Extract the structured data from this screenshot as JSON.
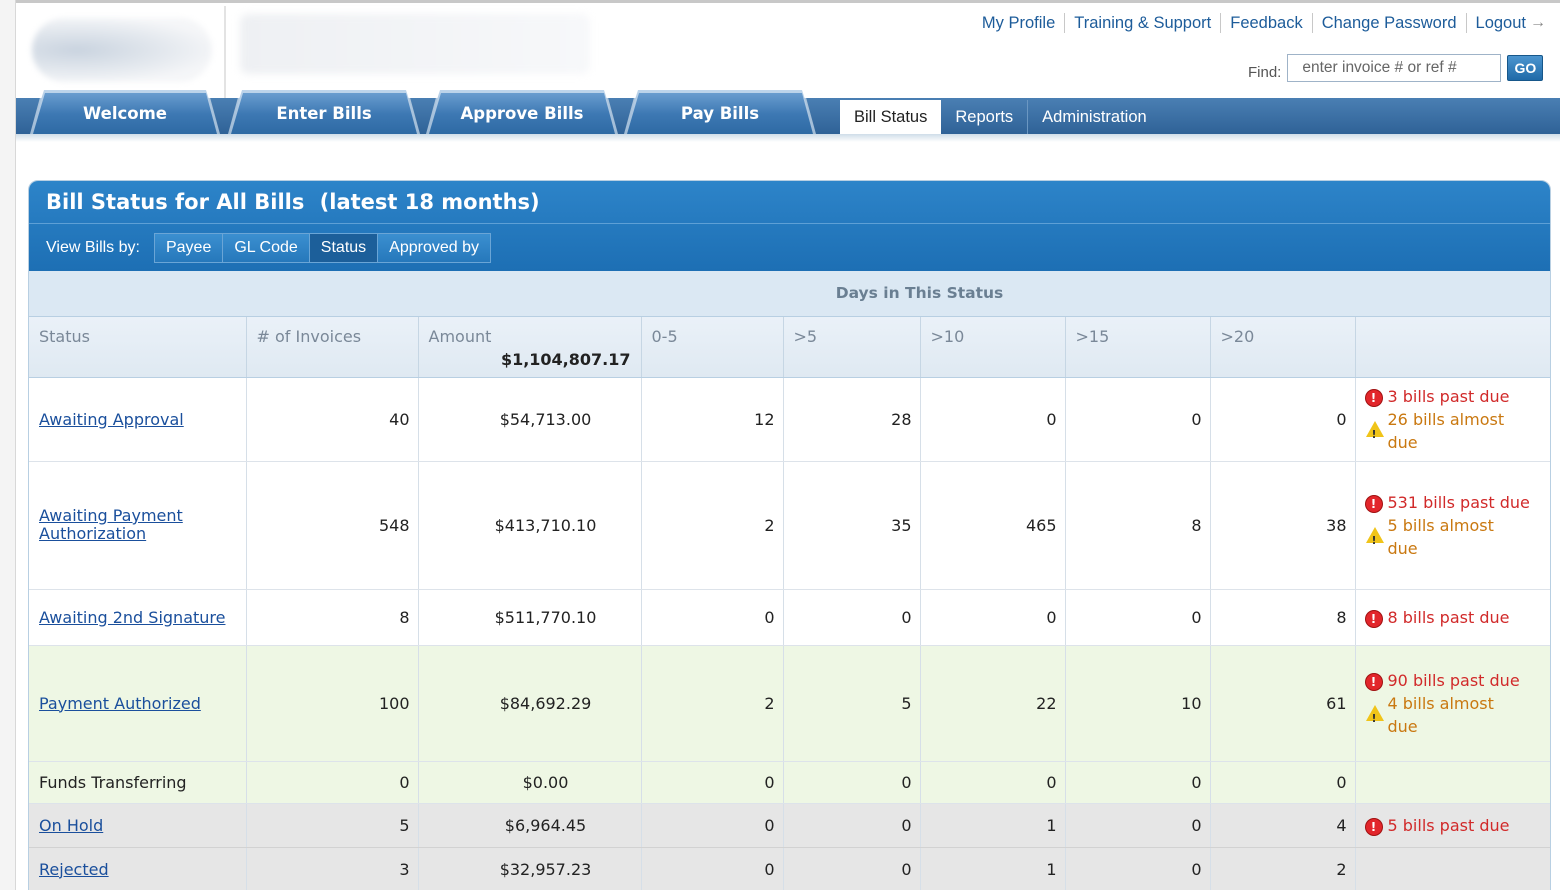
{
  "header": {
    "top_links": [
      "My Profile",
      "Training & Support",
      "Feedback",
      "Change Password",
      "Logout"
    ],
    "logout_icon": "arrow-right-icon",
    "find_label": "Find:",
    "find_placeholder": "enter invoice # or ref #",
    "go_label": "GO"
  },
  "nav": {
    "main_tabs": [
      "Welcome",
      "Enter Bills",
      "Approve Bills",
      "Pay Bills"
    ],
    "sub_tabs": [
      "Bill Status",
      "Reports",
      "Administration"
    ],
    "active_sub_tab": "Bill Status"
  },
  "panel": {
    "title": "Bill Status for All Bills",
    "title_suffix": "(latest 18 months)",
    "view_by_label": "View Bills by:",
    "view_by_options": [
      "Payee",
      "GL Code",
      "Status",
      "Approved by"
    ],
    "view_by_active": "Status",
    "days_header": "Days in This Status"
  },
  "table": {
    "columns": [
      "Status",
      "# of Invoices",
      "Amount",
      "0-5",
      ">5",
      ">10",
      ">15",
      ">20",
      ""
    ],
    "total_amount": "$1,104,807.17",
    "rows": [
      {
        "status": "Awaiting Approval",
        "link": true,
        "invoices": "40",
        "amount": "$54,713.00",
        "d0_5": "12",
        "d5": "28",
        "d10": "0",
        "d15": "0",
        "d20": "0",
        "past_due": "3 bills past due",
        "almost_due": "26 bills almost due",
        "style": "white"
      },
      {
        "status": "Awaiting Payment Authorization",
        "link": true,
        "invoices": "548",
        "amount": "$413,710.10",
        "d0_5": "2",
        "d5": "35",
        "d10": "465",
        "d15": "8",
        "d20": "38",
        "past_due": "531 bills past due",
        "almost_due": "5 bills almost due",
        "style": "white"
      },
      {
        "status": "Awaiting 2nd Signature",
        "link": true,
        "invoices": "8",
        "amount": "$511,770.10",
        "d0_5": "0",
        "d5": "0",
        "d10": "0",
        "d15": "0",
        "d20": "8",
        "past_due": "8 bills past due",
        "almost_due": "",
        "style": "white"
      },
      {
        "status": "Payment Authorized",
        "link": true,
        "invoices": "100",
        "amount": "$84,692.29",
        "d0_5": "2",
        "d5": "5",
        "d10": "22",
        "d15": "10",
        "d20": "61",
        "past_due": "90 bills past due",
        "almost_due": "4 bills almost due",
        "style": "green"
      },
      {
        "status": "Funds Transferring",
        "link": false,
        "invoices": "0",
        "amount": "$0.00",
        "d0_5": "0",
        "d5": "0",
        "d10": "0",
        "d15": "0",
        "d20": "0",
        "past_due": "",
        "almost_due": "",
        "style": "green"
      },
      {
        "status": "On Hold",
        "link": true,
        "invoices": "5",
        "amount": "$6,964.45",
        "d0_5": "0",
        "d5": "0",
        "d10": "1",
        "d15": "0",
        "d20": "4",
        "past_due": "5 bills past due",
        "almost_due": "",
        "style": "gray"
      },
      {
        "status": "Rejected",
        "link": true,
        "invoices": "3",
        "amount": "$32,957.23",
        "d0_5": "0",
        "d5": "0",
        "d10": "1",
        "d15": "0",
        "d20": "2",
        "past_due": "",
        "almost_due": "",
        "style": "gray"
      }
    ]
  },
  "colors": {
    "nav_blue": "#2f6297",
    "panel_blue": "#1d6fb4",
    "link": "#1a4f9c",
    "past_due_red": "#d12a2a",
    "almost_due_orange": "#c97810",
    "row_green": "#eef7e4",
    "row_gray": "#e6e6e6"
  },
  "icons": {
    "past_due": "error-circle-icon",
    "almost_due": "warning-triangle-icon"
  }
}
